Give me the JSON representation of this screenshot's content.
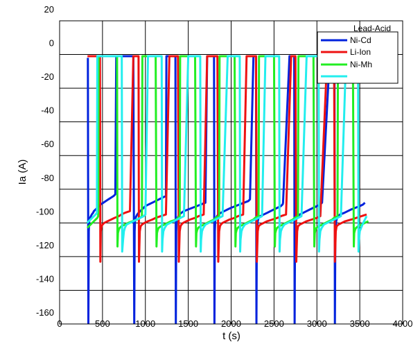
{
  "chart_data": {
    "type": "line",
    "xlabel": "t (s)",
    "ylabel": "Ia (A)",
    "xlim": [
      0,
      4000
    ],
    "ylim": [
      -160,
      20
    ],
    "xticks": [
      0,
      500,
      1000,
      1500,
      2000,
      2500,
      3000,
      3500,
      4000
    ],
    "yticks": [
      20,
      0,
      -20,
      -40,
      -60,
      -80,
      -100,
      -120,
      -140,
      -160
    ],
    "grid": true,
    "legend_position": "top-right",
    "legend_title": "Lead-Acid",
    "series": [
      {
        "name": "Ni-Cd",
        "color": "#0022dd",
        "x": [
          330,
          335,
          340,
          345,
          355,
          365,
          375,
          390,
          400,
          420,
          440,
          460,
          480,
          510,
          540,
          570,
          600,
          630,
          650,
          660,
          700,
          760,
          820,
          860,
          870,
          875,
          880,
          885,
          895,
          905,
          920,
          940,
          960,
          980,
          1000,
          1040,
          1080,
          1120,
          1160,
          1200,
          1240,
          1245,
          1300,
          1330,
          1350,
          1355,
          1360,
          1365,
          1375,
          1385,
          1395,
          1420,
          1450,
          1500,
          1550,
          1600,
          1650,
          1700,
          1720,
          1780,
          1790,
          1800,
          1805,
          1810,
          1815,
          1825,
          1835,
          1850,
          1880,
          1920,
          1960,
          2000,
          2050,
          2100,
          2150,
          2200,
          2220,
          2260,
          2280,
          2285,
          2290,
          2295,
          2300,
          2310,
          2320,
          2340,
          2380,
          2420,
          2460,
          2500,
          2540,
          2580,
          2600,
          2605,
          2680,
          2710,
          2730,
          2735,
          2740,
          2745,
          2755,
          2765,
          2780,
          2800,
          2840,
          2880,
          2920,
          2960,
          3000,
          3040,
          3060,
          3150,
          3180,
          3200,
          3205,
          3210,
          3215,
          3225,
          3235,
          3250,
          3270,
          3320,
          3360,
          3400,
          3450,
          3500,
          3540,
          3560
        ],
        "y": [
          -2,
          -160,
          -105,
          -99,
          -97,
          -96,
          -95,
          -94,
          -93,
          -92,
          -91,
          -90,
          -89,
          -88,
          -87,
          -86,
          -85,
          -84,
          -83,
          -1,
          -1,
          -1,
          -1,
          -1,
          -160,
          -105,
          -99,
          -97,
          -96,
          -95,
          -94,
          -93,
          -92,
          -91,
          -90,
          -89,
          -88,
          -87,
          -86,
          -85,
          -84,
          -1,
          -1,
          -1,
          -1,
          -160,
          -105,
          -99,
          -97,
          -96,
          -95,
          -94,
          -93,
          -92,
          -91,
          -90,
          -89,
          -88,
          -1,
          -1,
          -1,
          -1,
          -160,
          -105,
          -99,
          -97,
          -96,
          -95,
          -94,
          -93,
          -92,
          -91,
          -90,
          -89,
          -88,
          -87,
          -86,
          -1,
          -1,
          -1,
          -1,
          -160,
          -105,
          -99,
          -97,
          -96,
          -95,
          -94,
          -93,
          -92,
          -91,
          -90,
          -89,
          -88,
          -1,
          -1,
          -1,
          -1,
          -160,
          -105,
          -99,
          -97,
          -96,
          -95,
          -94,
          -93,
          -92,
          -91,
          -90,
          -89,
          -88,
          -1,
          -1,
          -1,
          -1,
          -160,
          -105,
          -99,
          -97,
          -96,
          -95,
          -94,
          -93,
          -92,
          -91,
          -90,
          -89,
          -88
        ]
      },
      {
        "name": "Li-Ion",
        "color": "#ee1111",
        "x": [
          325,
          360,
          400,
          440,
          460,
          470,
          475,
          480,
          490,
          500,
          520,
          560,
          600,
          640,
          690,
          720,
          760,
          820,
          860,
          880,
          920,
          925,
          935,
          945,
          960,
          990,
          1030,
          1080,
          1120,
          1180,
          1240,
          1280,
          1320,
          1380,
          1390,
          1400,
          1410,
          1420,
          1440,
          1480,
          1520,
          1580,
          1620,
          1680,
          1720,
          1780,
          1840,
          1850,
          1860,
          1870,
          1880,
          1900,
          1940,
          1980,
          2040,
          2080,
          2140,
          2180,
          2240,
          2290,
          2300,
          2310,
          2320,
          2340,
          2380,
          2420,
          2480,
          2540,
          2580,
          2640,
          2700,
          2740,
          2750,
          2760,
          2770,
          2780,
          2800,
          2840,
          2880,
          2940,
          3000,
          3040,
          3120,
          3180,
          3200,
          3210,
          3220,
          3230,
          3250,
          3290,
          3330,
          3400,
          3460,
          3520,
          3580
        ],
        "y": [
          -1,
          -1,
          -1,
          -1,
          -1,
          -1,
          -123,
          -105,
          -102,
          -101,
          -100,
          -99,
          -98,
          -97,
          -96,
          -95,
          -94,
          -93,
          -1,
          -1,
          -1,
          -123,
          -105,
          -102,
          -101,
          -100,
          -99,
          -98,
          -97,
          -96,
          -95,
          -1,
          -1,
          -1,
          -123,
          -105,
          -102,
          -101,
          -100,
          -99,
          -98,
          -97,
          -96,
          -95,
          -1,
          -1,
          -1,
          -123,
          -105,
          -102,
          -101,
          -100,
          -99,
          -98,
          -97,
          -96,
          -95,
          -1,
          -1,
          -1,
          -123,
          -105,
          -102,
          -101,
          -100,
          -99,
          -98,
          -97,
          -96,
          -95,
          -1,
          -1,
          -1,
          -123,
          -105,
          -102,
          -101,
          -100,
          -99,
          -98,
          -97,
          -96,
          -1,
          -1,
          -1,
          -123,
          -105,
          -102,
          -101,
          -100,
          -99,
          -98,
          -97,
          -96,
          -95
        ]
      },
      {
        "name": "Ni-Mh",
        "color": "#22ee22",
        "x": [
          325,
          340,
          360,
          380,
          400,
          420,
          440,
          450,
          455,
          460,
          470,
          480,
          500,
          520,
          540,
          560,
          580,
          600,
          620,
          640,
          660,
          670,
          675,
          680,
          690,
          700,
          720,
          760,
          800,
          850,
          900,
          940,
          960,
          965,
          1000,
          1060,
          1080,
          1120,
          1130,
          1135,
          1145,
          1155,
          1180,
          1220,
          1260,
          1300,
          1360,
          1380,
          1400,
          1405,
          1450,
          1520,
          1560,
          1580,
          1590,
          1595,
          1605,
          1615,
          1640,
          1680,
          1720,
          1760,
          1800,
          1820,
          1860,
          1865,
          1900,
          1980,
          2020,
          2040,
          2050,
          2055,
          2065,
          2075,
          2100,
          2140,
          2180,
          2220,
          2260,
          2280,
          2320,
          2325,
          2360,
          2440,
          2480,
          2500,
          2510,
          2515,
          2525,
          2535,
          2560,
          2600,
          2640,
          2680,
          2720,
          2740,
          2780,
          2785,
          2820,
          2900,
          2940,
          2960,
          2970,
          2975,
          2985,
          2995,
          3020,
          3060,
          3100,
          3140,
          3180,
          3200,
          3240,
          3245,
          3280,
          3360,
          3400,
          3420,
          3430,
          3435,
          3445,
          3455,
          3480,
          3520,
          3560,
          3600
        ],
        "y": [
          -103,
          -102,
          -101,
          -100,
          -99,
          -98,
          -97,
          -96,
          -1,
          -1,
          -1,
          -1,
          -1,
          -1,
          -1,
          -1,
          -1,
          -1,
          -1,
          -1,
          -1,
          -1,
          -114,
          -106,
          -104,
          -103,
          -102,
          -101,
          -100,
          -99,
          -98,
          -97,
          -96,
          -1,
          -1,
          -1,
          -1,
          -1,
          -114,
          -106,
          -104,
          -103,
          -102,
          -101,
          -100,
          -99,
          -98,
          -97,
          -96,
          -1,
          -1,
          -1,
          -1,
          -1,
          -114,
          -106,
          -104,
          -103,
          -102,
          -101,
          -100,
          -99,
          -98,
          -97,
          -96,
          -1,
          -1,
          -1,
          -1,
          -1,
          -114,
          -106,
          -104,
          -103,
          -102,
          -101,
          -100,
          -99,
          -98,
          -97,
          -96,
          -1,
          -1,
          -1,
          -1,
          -1,
          -114,
          -106,
          -104,
          -103,
          -102,
          -101,
          -100,
          -99,
          -98,
          -97,
          -96,
          -1,
          -1,
          -1,
          -1,
          -1,
          -114,
          -106,
          -104,
          -103,
          -102,
          -101,
          -100,
          -99,
          -98,
          -97,
          -96,
          -1,
          -1,
          -1,
          -1,
          -1,
          -114,
          -106,
          -104,
          -103,
          -102,
          -101,
          -100,
          -99
        ]
      },
      {
        "name": "Lead-Acid",
        "color": "#22eeee",
        "x": [
          320,
          340,
          360,
          380,
          400,
          420,
          435,
          440,
          445,
          450,
          470,
          500,
          560,
          620,
          680,
          700,
          720,
          725,
          730,
          740,
          750,
          760,
          780,
          820,
          860,
          900,
          940,
          980,
          1000,
          1030,
          1060,
          1120,
          1180,
          1190,
          1195,
          1200,
          1210,
          1225,
          1250,
          1290,
          1330,
          1370,
          1410,
          1450,
          1500,
          1560,
          1630,
          1640,
          1645,
          1650,
          1660,
          1675,
          1700,
          1740,
          1780,
          1820,
          1860,
          1900,
          1960,
          2020,
          2090,
          2100,
          2105,
          2110,
          2120,
          2135,
          2160,
          2200,
          2240,
          2280,
          2320,
          2360,
          2400,
          2480,
          2550,
          2560,
          2565,
          2570,
          2580,
          2595,
          2620,
          2660,
          2700,
          2740,
          2780,
          2820,
          2880,
          2940,
          3000,
          3020,
          3025,
          3030,
          3040,
          3055,
          3080,
          3120,
          3160,
          3200,
          3240,
          3280,
          3340,
          3400,
          3460,
          3480,
          3485,
          3490,
          3500,
          3515,
          3540,
          3580
        ],
        "y": [
          -100,
          -99,
          -98,
          -97,
          -96,
          -95,
          -94,
          -1,
          -1,
          -1,
          -1,
          -1,
          -1,
          -1,
          -1,
          -1,
          -1,
          -1,
          -117,
          -110,
          -105,
          -103,
          -101,
          -100,
          -99,
          -98,
          -97,
          -96,
          -95,
          -1,
          -1,
          -1,
          -1,
          -1,
          -117,
          -110,
          -105,
          -103,
          -101,
          -100,
          -99,
          -98,
          -97,
          -96,
          -1,
          -1,
          -1,
          -1,
          -117,
          -110,
          -105,
          -103,
          -101,
          -100,
          -99,
          -98,
          -97,
          -96,
          -1,
          -1,
          -1,
          -1,
          -117,
          -110,
          -105,
          -103,
          -101,
          -100,
          -99,
          -98,
          -97,
          -96,
          -1,
          -1,
          -1,
          -1,
          -117,
          -110,
          -105,
          -103,
          -101,
          -100,
          -99,
          -98,
          -97,
          -96,
          -1,
          -1,
          -1,
          -1,
          -117,
          -110,
          -105,
          -103,
          -101,
          -100,
          -99,
          -98,
          -97,
          -96,
          -1,
          -1,
          -1,
          -1,
          -117,
          -110,
          -105,
          -103,
          -100,
          -96
        ]
      }
    ]
  }
}
